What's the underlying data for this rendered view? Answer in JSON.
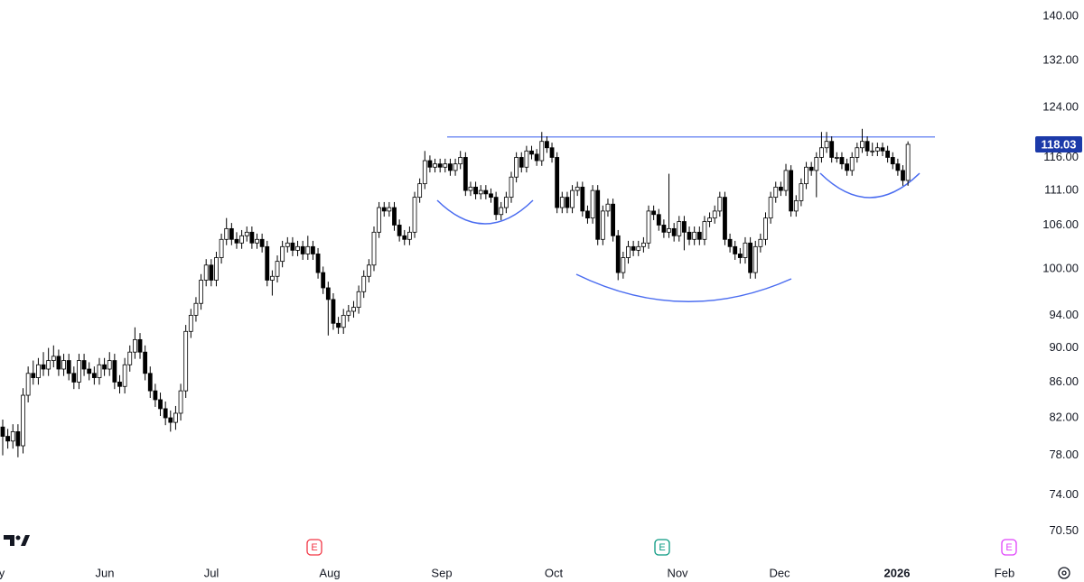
{
  "chart_data": {
    "type": "candlestick",
    "x_labels": [
      "y",
      "Jun",
      "Jul",
      "Aug",
      "Sep",
      "Oct",
      "Nov",
      "Dec",
      "2026",
      "Feb"
    ],
    "open": [
      81,
      80,
      79.5,
      80.5,
      79,
      84.5,
      87,
      86.5,
      88,
      87.5,
      88.5,
      89,
      87.5,
      88.5,
      87,
      86,
      88.5,
      87.5,
      87,
      86.5,
      88,
      87.5,
      88.5,
      86,
      85.5,
      88,
      89.5,
      91,
      89.5,
      87,
      85,
      84,
      83,
      82,
      81.5,
      82.5,
      85,
      92,
      94,
      95.5,
      98.5,
      100.5,
      98.5,
      101.5,
      104,
      105.5,
      104,
      103.5,
      104.5,
      105,
      103.5,
      104,
      103,
      98.5,
      99,
      101,
      103,
      103.5,
      102.5,
      103,
      102,
      103,
      102,
      99.5,
      97.5,
      96,
      93,
      92.5,
      94,
      94.5,
      95,
      97,
      99,
      100.5,
      105,
      108.5,
      108,
      108.5,
      106,
      104.5,
      104,
      105,
      110,
      112,
      115.5,
      114.5,
      115,
      114.5,
      115,
      114,
      115,
      116,
      111,
      111.5,
      110.5,
      111,
      110.5,
      110,
      107.5,
      108.5,
      110,
      113,
      116,
      114.5,
      117,
      116.5,
      115.5,
      118.5,
      117.5,
      116,
      108.5,
      110,
      108.5,
      111,
      111.5,
      108,
      107,
      111,
      104,
      108,
      109,
      104.5,
      99.5,
      101.5,
      103,
      102.5,
      103,
      103.5,
      108,
      107.5,
      106,
      105,
      105.5,
      104.5,
      106.5,
      105,
      104,
      105,
      104,
      106.5,
      107,
      108,
      110,
      104,
      103,
      102,
      101.5,
      103.5,
      99.5,
      103,
      104,
      107,
      110,
      111.5,
      111,
      114,
      108,
      109.5,
      112,
      114.5,
      114,
      116,
      117.5,
      118.5,
      116,
      116,
      115,
      114,
      116,
      117.5,
      118.5,
      117,
      117,
      117.5,
      117,
      116,
      115,
      114,
      112.5
    ],
    "high": [
      81.8,
      80.8,
      81.3,
      81.3,
      85.3,
      87.8,
      88.5,
      88.8,
      89.5,
      90,
      90.3,
      89.8,
      89.3,
      89.3,
      87.8,
      89.3,
      89.3,
      88.3,
      87.8,
      88.8,
      88.8,
      89.5,
      89.3,
      86.8,
      88.8,
      90.3,
      92.5,
      91.8,
      90.3,
      87.8,
      85.8,
      84.8,
      83.8,
      82.8,
      83.3,
      85.8,
      92.8,
      94.8,
      96.3,
      99.3,
      101.3,
      101.3,
      102.3,
      104.8,
      107,
      106.3,
      105,
      105.3,
      105.8,
      105.8,
      104.8,
      104.8,
      103.8,
      99.8,
      101.8,
      103.8,
      104.3,
      104.3,
      103.8,
      103.8,
      104.5,
      103.8,
      102.8,
      100.3,
      98.3,
      96.8,
      93.8,
      94.8,
      95.3,
      95.8,
      97.8,
      99.8,
      101.3,
      105.8,
      109.3,
      109.3,
      109.3,
      109.3,
      106.8,
      105.3,
      105.8,
      110.8,
      112.8,
      117,
      116.3,
      115.8,
      115.8,
      115.8,
      115.8,
      115.8,
      117,
      116.8,
      112.3,
      112.3,
      111.8,
      111.8,
      111.3,
      110.8,
      109.3,
      110.8,
      113.8,
      116.8,
      116.8,
      117.8,
      117.8,
      117.3,
      120,
      119.3,
      118.3,
      116.8,
      110.8,
      110.8,
      111.8,
      112.3,
      112.3,
      108.8,
      111.8,
      111.8,
      108.8,
      109.8,
      109.8,
      105.3,
      102.3,
      103.8,
      103.8,
      103.8,
      104.3,
      108.8,
      108.8,
      108.3,
      106.8,
      113.5,
      106.3,
      107.3,
      107.3,
      105.8,
      105.8,
      105.8,
      107.3,
      107.8,
      108.8,
      110.8,
      110.8,
      104.8,
      103.8,
      102.8,
      104.3,
      104.3,
      103.8,
      104.8,
      107.8,
      110.8,
      112.3,
      112.3,
      115,
      114.8,
      110.3,
      112.8,
      115.3,
      115.3,
      116.8,
      120,
      120,
      119.3,
      116.8,
      116.8,
      115.8,
      116.8,
      118.3,
      120.5,
      119.3,
      118.3,
      118.3,
      118.3,
      117.8,
      116.8,
      115.8,
      114.8,
      118.5
    ],
    "low": [
      78,
      78.7,
      78.7,
      77.8,
      78.2,
      83.7,
      85.7,
      85.7,
      86.7,
      86.7,
      87.7,
      86.7,
      86.7,
      86.2,
      85.2,
      85.2,
      86.7,
      86.2,
      85.7,
      85.7,
      86.7,
      86.7,
      85.2,
      84.7,
      84.7,
      87.2,
      88.7,
      88.7,
      86.2,
      84.2,
      83.2,
      82.2,
      81.2,
      80.5,
      80.7,
      81.7,
      84.2,
      91.2,
      93.2,
      94.7,
      97.7,
      97.7,
      97.7,
      100.7,
      103.2,
      103.2,
      102.7,
      102.7,
      103.7,
      102.7,
      102.7,
      102.2,
      97.7,
      96.5,
      98.2,
      100.2,
      102.2,
      101.7,
      101.7,
      101.2,
      101.2,
      101.2,
      98.7,
      96.7,
      91.5,
      92.2,
      91.7,
      91.7,
      93.2,
      93.7,
      94.2,
      96.2,
      98.2,
      99.7,
      104.2,
      107.2,
      107.2,
      105.2,
      103.7,
      103.2,
      103.2,
      104.2,
      109.2,
      111.2,
      113.7,
      113.7,
      113.7,
      113.7,
      113.2,
      113.2,
      114.2,
      110.2,
      110.2,
      109.7,
      109.7,
      109.7,
      109.2,
      106.7,
      106.7,
      107.7,
      109.2,
      112.2,
      113.7,
      113.7,
      115.7,
      114.7,
      114.7,
      116.7,
      115.2,
      107.7,
      107.7,
      107.7,
      107.7,
      110.2,
      107.2,
      106.2,
      106.2,
      103.2,
      103.2,
      107.2,
      103.7,
      98.5,
      98.7,
      100.7,
      101.7,
      101.7,
      102.2,
      102.7,
      106.7,
      105.2,
      104.2,
      104.2,
      103.7,
      103.7,
      102.5,
      103.2,
      103.2,
      103.2,
      103.2,
      105.7,
      106.2,
      107.2,
      103.2,
      102.2,
      101.2,
      100.7,
      100.7,
      98.7,
      98.7,
      102.2,
      103.2,
      106.2,
      109.2,
      110.2,
      110.2,
      107.2,
      107.2,
      108.7,
      111.2,
      113.2,
      110,
      115.2,
      116.7,
      115.2,
      115.2,
      114.2,
      113.2,
      113.2,
      115.2,
      116.7,
      116.2,
      116.2,
      116.2,
      116.2,
      115.2,
      114.2,
      113.2,
      111.7,
      111.7
    ],
    "close": [
      80,
      79.5,
      80.5,
      79,
      84.5,
      87,
      86.5,
      88,
      87.5,
      88.5,
      89,
      87.5,
      88.5,
      87,
      86,
      88.5,
      87.5,
      87,
      86.5,
      88,
      87.5,
      88.5,
      86,
      85.5,
      88,
      89.5,
      91,
      89.5,
      87,
      85,
      84,
      83,
      82,
      81.5,
      82.5,
      85,
      92,
      94,
      95.5,
      98.5,
      100.5,
      98.5,
      101.5,
      104,
      105.5,
      104,
      103.5,
      104.5,
      105,
      103.5,
      104,
      103,
      98.5,
      99,
      101,
      103,
      103.5,
      102.5,
      103,
      102,
      103,
      102,
      99.5,
      97.5,
      96,
      93,
      92.5,
      94,
      94.5,
      95,
      97,
      99,
      100.5,
      105,
      108.5,
      108,
      108.5,
      106,
      104.5,
      104,
      105,
      110,
      112,
      115.5,
      114.5,
      115,
      114.5,
      115,
      114,
      115,
      116,
      111,
      111.5,
      110.5,
      111,
      110.5,
      110,
      107.5,
      108.5,
      110,
      113,
      116,
      114.5,
      117,
      116.5,
      115.5,
      118.5,
      117.5,
      116,
      108.5,
      110,
      108.5,
      111,
      111.5,
      108,
      107,
      111,
      104,
      108,
      109,
      104.5,
      99.5,
      101.5,
      103,
      102.5,
      103,
      103.5,
      108,
      107.5,
      106,
      105,
      105.5,
      104.5,
      106.5,
      105,
      104,
      105,
      104,
      106.5,
      107,
      108,
      110,
      104,
      103,
      102,
      101.5,
      103.5,
      99.5,
      103,
      104,
      107,
      110,
      111.5,
      111,
      114,
      108,
      109.5,
      112,
      114.5,
      114,
      116,
      117.5,
      118.5,
      116,
      116,
      115,
      114,
      116,
      117.5,
      118.5,
      117,
      117,
      117.5,
      117,
      116,
      115,
      114,
      112.5,
      118.03
    ],
    "ylim": [
      67.9,
      143.06
    ],
    "log_scale": true,
    "yticks": [
      {
        "value": 140,
        "label": "140.00"
      },
      {
        "value": 132,
        "label": "132.00"
      },
      {
        "value": 124,
        "label": "124.00"
      },
      {
        "value": 116,
        "label": "116.00"
      },
      {
        "value": 111,
        "label": "111.00"
      },
      {
        "value": 106,
        "label": "106.00"
      },
      {
        "value": 100,
        "label": "100.00"
      },
      {
        "value": 94,
        "label": "94.00"
      },
      {
        "value": 90,
        "label": "90.00"
      },
      {
        "value": 86,
        "label": "86.00"
      },
      {
        "value": 82,
        "label": "82.00"
      },
      {
        "value": 78,
        "label": "78.00"
      },
      {
        "value": 74,
        "label": "74.00"
      },
      {
        "value": 70.5,
        "label": "70.50"
      }
    ],
    "up_color": "#ffffff",
    "down_color": "#000000",
    "last_price": 118.03,
    "last_price_color": "#1c3aa9",
    "resistance": 119.2,
    "line_color": "#4a6cf0",
    "earnings": [
      "E",
      "E",
      "E"
    ],
    "earnings_colors": [
      "#f23645",
      "#089981",
      "#e040fb"
    ]
  }
}
